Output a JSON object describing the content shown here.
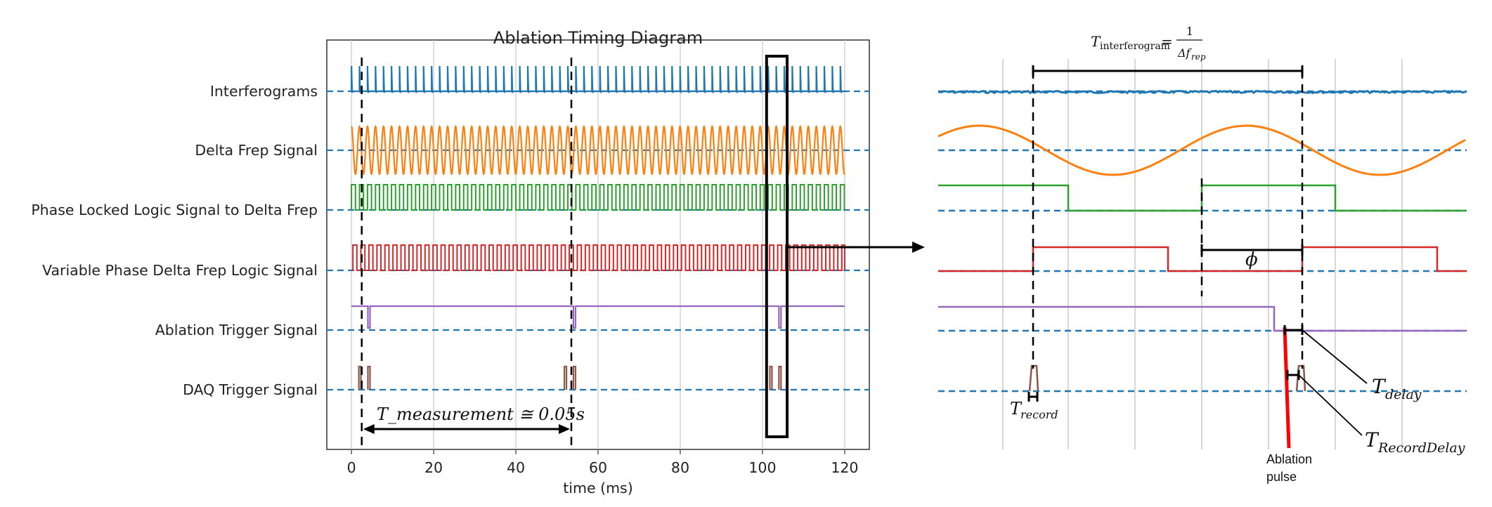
{
  "chart_data": {
    "type": "line",
    "title": "Ablation Timing Diagram",
    "xlabel": "time (ms)",
    "xlim": [
      -6,
      126
    ],
    "xticks": [
      "0",
      "20",
      "40",
      "60",
      "80",
      "100",
      "120"
    ],
    "xtick_values": [
      0,
      20,
      40,
      60,
      80,
      100,
      120
    ],
    "grid": true,
    "series": [
      {
        "name": "Interferograms",
        "color": "#1f77b4"
      },
      {
        "name": "Delta Frep Signal",
        "color": "#ff7f0e"
      },
      {
        "name": "Phase Locked Logic Signal to Delta Frep",
        "color": "#2ca02c"
      },
      {
        "name": "Variable Phase Delta Frep Logic Signal",
        "color": "#d62728"
      },
      {
        "name": "Ablation Trigger Signal",
        "color": "#9467bd"
      },
      {
        "name": "DAQ Trigger Signal",
        "color": "#8c564b"
      }
    ],
    "signal_period_ms": 1.95,
    "signal_span_ms": [
      0,
      120
    ],
    "ablation_trigger_ms": [
      4,
      54,
      104
    ],
    "measurement_window_ms": [
      2.5,
      53.5
    ],
    "measurement_annotation": "T_measurement ≅ 0.05s",
    "zoom_box_ms": [
      101,
      106
    ]
  },
  "zoom_panel": {
    "t_interferogram_lhs": "T",
    "t_interferogram_sub": "interferogram",
    "eq": "=",
    "frac_num": "1",
    "frac_den": "Δf",
    "frac_den_sub": "rep",
    "phi": "ϕ",
    "t_record": "T",
    "t_record_sub": "record",
    "t_delay": "T",
    "t_delay_sub": "delay",
    "t_record_delay": "T",
    "t_record_delay_sub": "RecordDelay",
    "ablation_pulse_line1": "Ablation",
    "ablation_pulse_line2": "pulse"
  },
  "colors": {
    "baseline": "#1f77b4",
    "axes": "#333333",
    "grid": "#c8c8c8",
    "ablation_pulse": "#ff0000"
  }
}
